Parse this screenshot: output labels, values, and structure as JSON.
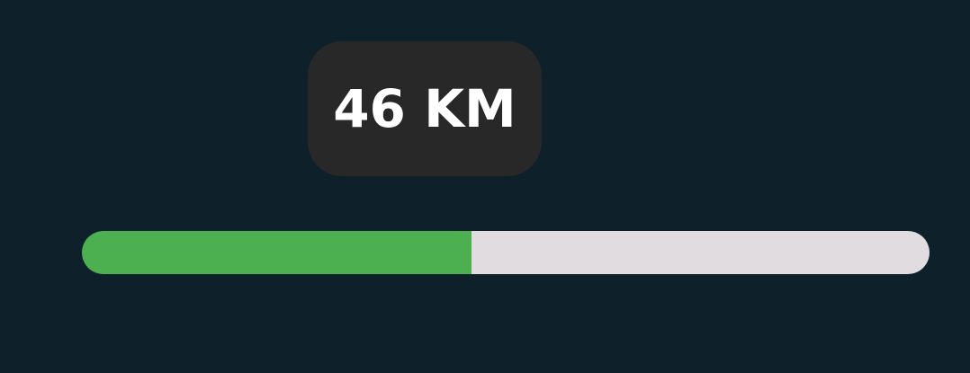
{
  "tooltip": {
    "label": "46 KM"
  },
  "progress": {
    "fraction": 0.46,
    "fill_color": "#4caf50",
    "track_color": "#e0dcdf"
  },
  "colors": {
    "background": "#0e212a",
    "tooltip_background": "#282828",
    "tooltip_text": "#ffffff"
  }
}
